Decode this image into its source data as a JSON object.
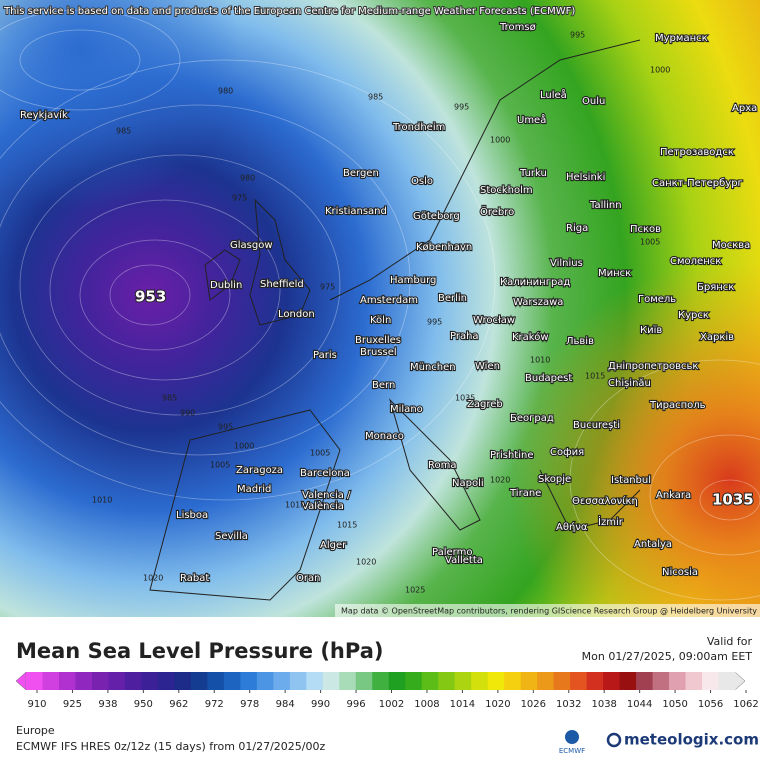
{
  "header": {
    "notice": "This service is based on data and products of the European Centre for Medium-range Weather Forecasts (ECMWF)"
  },
  "map": {
    "attribution": "Map data © OpenStreetMap contributors, rendering GIScience Research Group @ Heidelberg University",
    "extremes": [
      953,
      1035
    ],
    "cities": [
      "Reykjavík",
      "Tromsø",
      "Мурманск",
      "Luleå",
      "Oulu",
      "Арха",
      "Trondheim",
      "Umeå",
      "Петрозаводск",
      "Bergen",
      "Turku",
      "Helsinki",
      "Санкт-Петербург",
      "Oslo",
      "Stockholm",
      "Örebro",
      "Tallinn",
      "Kristiansand",
      "Göteborg",
      "Riga",
      "Псков",
      "København",
      "Glasgow",
      "Vilnius",
      "Минск",
      "Смоленск",
      "Москва",
      "Hamburg",
      "Калининград",
      "Брянск",
      "Dublin",
      "Sheffield",
      "Amsterdam",
      "Berlin",
      "Warszawa",
      "Гомель",
      "Курск",
      "London",
      "Köln",
      "Wrocław",
      "Київ",
      "Praha",
      "Kraków",
      "Львів",
      "Харків",
      "Paris",
      "Bruxelles",
      "Brussel",
      "München",
      "Wien",
      "Дніпропетровськ",
      "Chișinău",
      "Budapest",
      "Bern",
      "Milano",
      "Zagreb",
      "Тирасполь",
      "Београд",
      "București",
      "Monaco",
      "Prishtine",
      "София",
      "Roma",
      "Zaragoza",
      "Barcelona",
      "Madrid",
      "Skopje",
      "Istanbul",
      "Napoli",
      "Tirane",
      "Ankara",
      "Valencia /",
      "València",
      "Θεσσαλονίκη",
      "Lisboa",
      "Sevilla",
      "Palermo",
      "Αθήνα",
      "İzmir",
      "Alger",
      "Antalya",
      "Valletta",
      "Nicosia",
      "Rabat",
      "Oran"
    ],
    "pressure_labels": [
      995,
      1000,
      985,
      995,
      980,
      985,
      1000,
      980,
      975,
      995,
      1005,
      975,
      985,
      990,
      995,
      1000,
      1005,
      1010,
      1015,
      1020,
      1025,
      1020,
      1010,
      1020,
      1005,
      1015,
      1010,
      1035
    ]
  },
  "legend": {
    "title": "Mean Sea Level Pressure (hPa)",
    "valid_label": "Valid for",
    "valid_time": "Mon 01/27/2025, 09:00am EET",
    "ticks": [
      910,
      925,
      938,
      950,
      962,
      972,
      978,
      984,
      990,
      996,
      1002,
      1008,
      1014,
      1020,
      1026,
      1032,
      1038,
      1044,
      1050,
      1056,
      1062
    ],
    "colors": [
      "#f050f0",
      "#d040e0",
      "#b030d0",
      "#9028c0",
      "#7a22b0",
      "#6420a8",
      "#4e20a0",
      "#3c2098",
      "#2c2490",
      "#1c2c88",
      "#143c90",
      "#1450a8",
      "#1c64c0",
      "#2c7cd8",
      "#4c94e4",
      "#6cacec",
      "#90c4f0",
      "#b4dcf4",
      "#cce8e4",
      "#a8dcb8",
      "#78c884",
      "#40b040",
      "#20a020",
      "#34ac1c",
      "#5cbc18",
      "#84c814",
      "#acd410",
      "#d4e00c",
      "#f0e808",
      "#f4d010",
      "#f0b414",
      "#ec9818",
      "#e8781c",
      "#e45420",
      "#d43020",
      "#b81818",
      "#981010",
      "#a04050",
      "#c07080",
      "#e0a0b0",
      "#f0c8d0",
      "#f8e8ec",
      "#e8e8e8"
    ]
  },
  "footer": {
    "region": "Europe",
    "model": "ECMWF IFS HRES 0z/12z (15 days) from 01/27/2025/00z",
    "logo_small": "ECMWF",
    "logo": "meteologix.com"
  }
}
